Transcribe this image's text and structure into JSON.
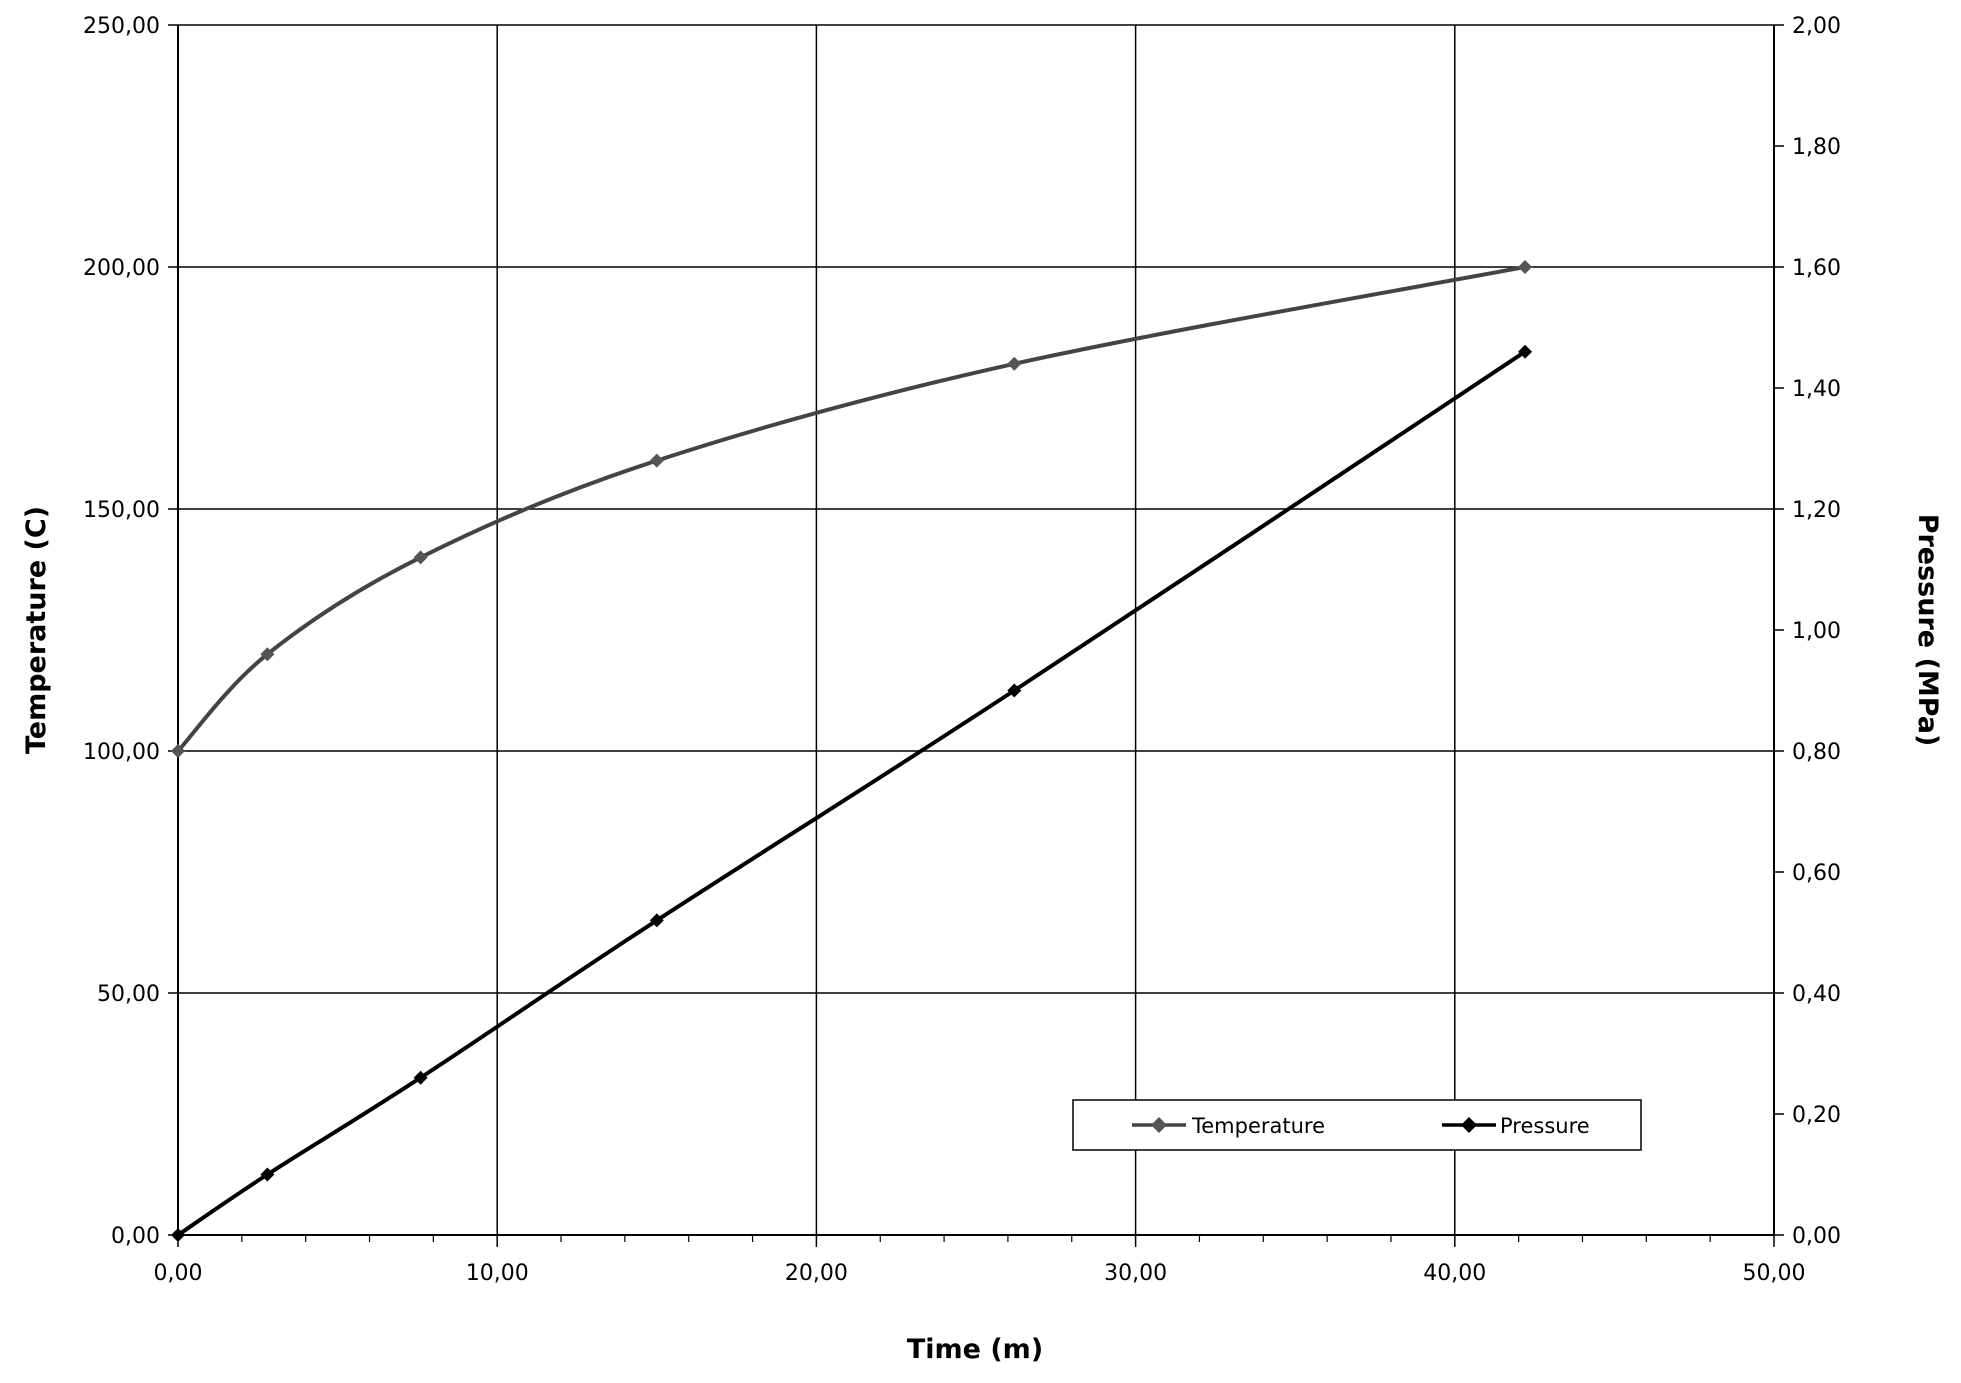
{
  "chart_data": {
    "type": "line",
    "title": "",
    "xlabel": "Time (m)",
    "ylabel": "Temperature (C)",
    "y2label": "Pressure (MPa)",
    "xlim": [
      0,
      50
    ],
    "ylim": [
      0,
      250
    ],
    "y2lim": [
      0,
      2
    ],
    "grid": true,
    "legend_position": "bottom-right",
    "x_ticks": [
      "0,00",
      "10,00",
      "20,00",
      "30,00",
      "40,00",
      "50,00"
    ],
    "y_ticks": [
      "0,00",
      "50,00",
      "100,00",
      "150,00",
      "200,00",
      "250,00"
    ],
    "y2_ticks": [
      "0,00",
      "0,20",
      "0,40",
      "0,60",
      "0,80",
      "1,00",
      "1,20",
      "1,40",
      "1,60",
      "1,80",
      "2,00"
    ],
    "series": [
      {
        "name": "Temperature",
        "axis": "left",
        "color": "#444444",
        "marker": "diamond",
        "x": [
          0.0,
          2.8,
          7.6,
          15.0,
          26.2,
          42.2
        ],
        "y": [
          100,
          120,
          140,
          160,
          180,
          200
        ]
      },
      {
        "name": "Pressure",
        "axis": "right",
        "color": "#000000",
        "marker": "diamond",
        "x": [
          0.0,
          2.8,
          7.6,
          15.0,
          26.2,
          42.2
        ],
        "y": [
          0.0,
          0.1,
          0.26,
          0.52,
          0.9,
          1.46
        ]
      }
    ]
  }
}
